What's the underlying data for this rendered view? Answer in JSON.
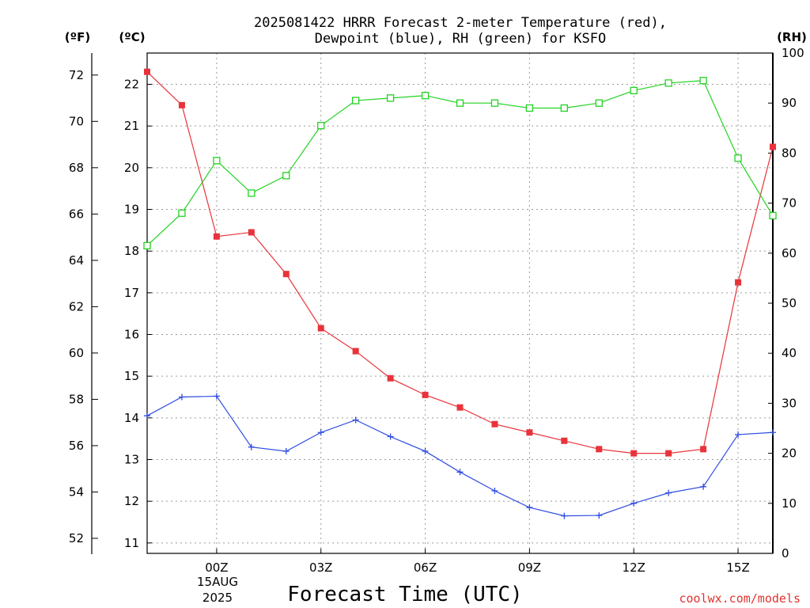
{
  "chart_data": {
    "type": "line",
    "title_line1": "2025081422 HRRR Forecast 2-meter Temperature (red),",
    "title_line2": "Dewpoint (blue), RH (green) for KSFO",
    "xlabel": "Forecast Time (UTC)",
    "credit": "coolwx.com/models",
    "unit_f": "(ºF)",
    "unit_c": "(ºC)",
    "unit_rh": "(RH)",
    "x_hours": [
      -2,
      -1,
      0,
      1,
      2,
      3,
      4,
      5,
      6,
      7,
      8,
      9,
      10,
      11,
      12,
      13,
      14,
      15,
      16
    ],
    "x_ticks": [
      {
        "hour": 0,
        "label": "00Z"
      },
      {
        "hour": 3,
        "label": "03Z"
      },
      {
        "hour": 6,
        "label": "06Z"
      },
      {
        "hour": 9,
        "label": "09Z"
      },
      {
        "hour": 12,
        "label": "12Z"
      },
      {
        "hour": 15,
        "label": "15Z"
      }
    ],
    "date_label_day": "15AUG",
    "date_label_year": "2025",
    "xlim": [
      -2,
      16
    ],
    "celsius_axis": {
      "ticks": [
        11,
        12,
        13,
        14,
        15,
        16,
        17,
        18,
        19,
        20,
        21,
        22
      ],
      "ylim": [
        10.75,
        22.75
      ]
    },
    "fahrenheit_axis": {
      "ticks": [
        52,
        54,
        56,
        58,
        60,
        62,
        64,
        66,
        68,
        70,
        72
      ]
    },
    "rh_axis": {
      "ticks": [
        0,
        10,
        20,
        30,
        40,
        50,
        60,
        70,
        80,
        90,
        100
      ],
      "ylim": [
        0,
        100
      ]
    },
    "series": [
      {
        "name": "Temperature",
        "color": "#e8333a",
        "axis": "celsius",
        "marker": "filled-square",
        "values": [
          22.3,
          21.5,
          18.35,
          18.45,
          17.45,
          16.15,
          15.6,
          14.95,
          14.55,
          14.25,
          13.85,
          13.65,
          13.45,
          13.25,
          13.15,
          13.15,
          13.25,
          17.25,
          20.5
        ]
      },
      {
        "name": "Dewpoint",
        "color": "#2e4de0",
        "axis": "celsius",
        "marker": "plus",
        "values": [
          14.05,
          14.5,
          14.52,
          13.3,
          13.2,
          13.65,
          13.95,
          13.55,
          13.2,
          12.7,
          12.25,
          11.85,
          11.65,
          11.66,
          11.95,
          12.2,
          12.35,
          13.6,
          13.65
        ]
      },
      {
        "name": "RH",
        "color": "#22d222",
        "axis": "rh",
        "marker": "open-square",
        "values": [
          61.5,
          68,
          78.5,
          72,
          75.5,
          85.5,
          90.5,
          91,
          91.5,
          90,
          90,
          89,
          89,
          90,
          92.5,
          94,
          94.5,
          79,
          67.5
        ]
      }
    ]
  }
}
